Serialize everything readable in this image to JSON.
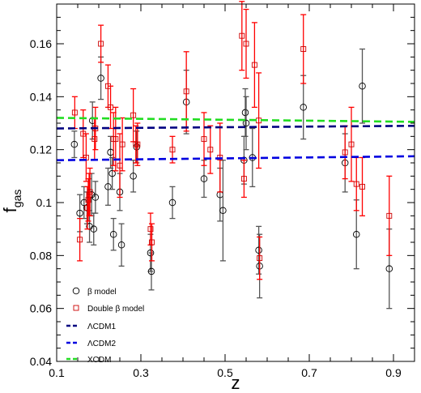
{
  "chart_data": {
    "type": "scatter",
    "xlabel": "z",
    "ylabel_main": "f",
    "ylabel_sub": "gas",
    "xlim": [
      0.1,
      0.95
    ],
    "ylim": [
      0.04,
      0.175
    ],
    "xticks": [
      0.1,
      0.3,
      0.5,
      0.7,
      0.9
    ],
    "yticks": [
      0.04,
      0.06,
      0.08,
      0.1,
      0.12,
      0.14,
      0.16
    ],
    "xtick_labels": [
      "0.1",
      "0.3",
      "0.5",
      "0.7",
      "0.9"
    ],
    "ytick_labels": [
      "0.04",
      "0.06",
      "0.08",
      "0.1",
      "0.12",
      "0.14",
      "0.16"
    ],
    "grid": false,
    "legend_position": "bottom-left",
    "series": [
      {
        "name": "β model",
        "marker": "circle",
        "color": "#000000",
        "errorbar_color": "#555555",
        "points": [
          {
            "x": 0.142,
            "y": 0.122,
            "err": 0.005
          },
          {
            "x": 0.155,
            "y": 0.096,
            "err": 0.007
          },
          {
            "x": 0.165,
            "y": 0.1,
            "err": 0.006
          },
          {
            "x": 0.172,
            "y": 0.098,
            "err": 0.006
          },
          {
            "x": 0.178,
            "y": 0.091,
            "err": 0.006
          },
          {
            "x": 0.183,
            "y": 0.103,
            "err": 0.008
          },
          {
            "x": 0.185,
            "y": 0.131,
            "err": 0.007
          },
          {
            "x": 0.188,
            "y": 0.09,
            "err": 0.006
          },
          {
            "x": 0.192,
            "y": 0.102,
            "err": 0.006
          },
          {
            "x": 0.205,
            "y": 0.147,
            "err": 0.008
          },
          {
            "x": 0.222,
            "y": 0.106,
            "err": 0.007
          },
          {
            "x": 0.228,
            "y": 0.119,
            "err": 0.006
          },
          {
            "x": 0.232,
            "y": 0.111,
            "err": 0.006
          },
          {
            "x": 0.235,
            "y": 0.088,
            "err": 0.006
          },
          {
            "x": 0.25,
            "y": 0.104,
            "err": 0.007
          },
          {
            "x": 0.254,
            "y": 0.084,
            "err": 0.008
          },
          {
            "x": 0.282,
            "y": 0.11,
            "err": 0.006
          },
          {
            "x": 0.29,
            "y": 0.121,
            "err": 0.006
          },
          {
            "x": 0.323,
            "y": 0.081,
            "err": 0.007
          },
          {
            "x": 0.325,
            "y": 0.074,
            "err": 0.007
          },
          {
            "x": 0.375,
            "y": 0.1,
            "err": 0.006
          },
          {
            "x": 0.408,
            "y": 0.138,
            "err": 0.012
          },
          {
            "x": 0.45,
            "y": 0.109,
            "err": 0.007
          },
          {
            "x": 0.488,
            "y": 0.103,
            "err": 0.01
          },
          {
            "x": 0.495,
            "y": 0.097,
            "err": 0.019
          },
          {
            "x": 0.545,
            "y": 0.116,
            "err": 0.009
          },
          {
            "x": 0.548,
            "y": 0.134,
            "err": 0.009
          },
          {
            "x": 0.55,
            "y": 0.13,
            "err": 0.01
          },
          {
            "x": 0.565,
            "y": 0.117,
            "err": 0.011
          },
          {
            "x": 0.58,
            "y": 0.082,
            "err": 0.009
          },
          {
            "x": 0.582,
            "y": 0.076,
            "err": 0.012
          },
          {
            "x": 0.686,
            "y": 0.136,
            "err": 0.012
          },
          {
            "x": 0.785,
            "y": 0.115,
            "err": 0.011
          },
          {
            "x": 0.812,
            "y": 0.088,
            "err": 0.013
          },
          {
            "x": 0.826,
            "y": 0.144,
            "err": 0.014
          },
          {
            "x": 0.89,
            "y": 0.075,
            "err": 0.015
          }
        ]
      },
      {
        "name": "Double β model",
        "marker": "square",
        "color": "#cc0000",
        "errorbar_color": "#ff0000",
        "points": [
          {
            "x": 0.143,
            "y": 0.134,
            "err": 0.006
          },
          {
            "x": 0.155,
            "y": 0.086,
            "err": 0.008
          },
          {
            "x": 0.163,
            "y": 0.126,
            "err": 0.009
          },
          {
            "x": 0.17,
            "y": 0.117,
            "err": 0.009
          },
          {
            "x": 0.173,
            "y": 0.098,
            "err": 0.008
          },
          {
            "x": 0.175,
            "y": 0.101,
            "err": 0.008
          },
          {
            "x": 0.177,
            "y": 0.103,
            "err": 0.008
          },
          {
            "x": 0.179,
            "y": 0.104,
            "err": 0.009
          },
          {
            "x": 0.19,
            "y": 0.124,
            "err": 0.008
          },
          {
            "x": 0.192,
            "y": 0.128,
            "err": 0.008
          },
          {
            "x": 0.205,
            "y": 0.16,
            "err": 0.007
          },
          {
            "x": 0.222,
            "y": 0.144,
            "err": 0.008
          },
          {
            "x": 0.228,
            "y": 0.136,
            "err": 0.008
          },
          {
            "x": 0.235,
            "y": 0.124,
            "err": 0.01
          },
          {
            "x": 0.24,
            "y": 0.124,
            "err": 0.012
          },
          {
            "x": 0.25,
            "y": 0.114,
            "err": 0.012
          },
          {
            "x": 0.256,
            "y": 0.122,
            "err": 0.01
          },
          {
            "x": 0.282,
            "y": 0.133,
            "err": 0.01
          },
          {
            "x": 0.288,
            "y": 0.122,
            "err": 0.007
          },
          {
            "x": 0.292,
            "y": 0.122,
            "err": 0.008
          },
          {
            "x": 0.323,
            "y": 0.09,
            "err": 0.006
          },
          {
            "x": 0.326,
            "y": 0.085,
            "err": 0.007
          },
          {
            "x": 0.375,
            "y": 0.12,
            "err": 0.005
          },
          {
            "x": 0.408,
            "y": 0.142,
            "err": 0.015
          },
          {
            "x": 0.45,
            "y": 0.124,
            "err": 0.01
          },
          {
            "x": 0.465,
            "y": 0.12,
            "err": 0.009
          },
          {
            "x": 0.488,
            "y": 0.117,
            "err": 0.013
          },
          {
            "x": 0.54,
            "y": 0.163,
            "err": 0.013
          },
          {
            "x": 0.545,
            "y": 0.109,
            "err": 0.007
          },
          {
            "x": 0.55,
            "y": 0.16,
            "err": 0.013
          },
          {
            "x": 0.57,
            "y": 0.152,
            "err": 0.016
          },
          {
            "x": 0.58,
            "y": 0.131,
            "err": 0.018
          },
          {
            "x": 0.582,
            "y": 0.079,
            "err": 0.008
          },
          {
            "x": 0.686,
            "y": 0.158,
            "err": 0.013
          },
          {
            "x": 0.785,
            "y": 0.119,
            "err": 0.01
          },
          {
            "x": 0.8,
            "y": 0.122,
            "err": 0.014
          },
          {
            "x": 0.812,
            "y": 0.107,
            "err": 0.01
          },
          {
            "x": 0.826,
            "y": 0.106,
            "err": 0.011
          },
          {
            "x": 0.89,
            "y": 0.095,
            "err": 0.015
          }
        ]
      }
    ],
    "lines": [
      {
        "name": "ΛCDM1",
        "color": "#000080",
        "y_start": 0.128,
        "y_end": 0.129
      },
      {
        "name": "ΛCDM2",
        "color": "#0000e0",
        "y_start": 0.116,
        "y_end": 0.1175
      },
      {
        "name": "XCDM",
        "color": "#22dd22",
        "y_start": 0.132,
        "y_end": 0.1305
      }
    ]
  }
}
